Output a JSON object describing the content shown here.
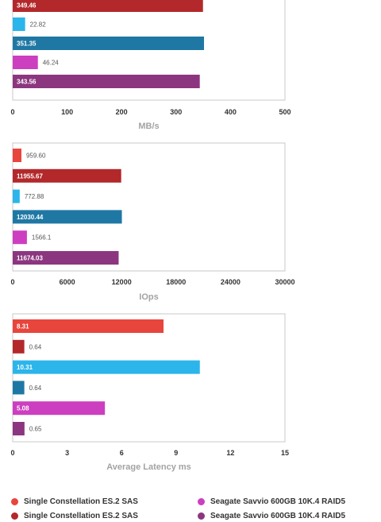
{
  "colors": {
    "red": "#e8453c",
    "dark_red": "#b3282a",
    "light_blue": "#2bb5ea",
    "dark_blue": "#1f78a4",
    "magenta": "#cc3fc0",
    "purple": "#8c3680",
    "frame": "#c8c8c8",
    "axis_title": "#a3a3a3"
  },
  "chart_data": [
    {
      "type": "bar",
      "orientation": "horizontal",
      "xlabel": "MB/s",
      "xlim": [
        0,
        500
      ],
      "ticks": [
        "0",
        "100",
        "200",
        "300",
        "400",
        "500"
      ],
      "bars": [
        {
          "label": "349.46",
          "value": 349.46,
          "color": "dark_red"
        },
        {
          "label": "22.82",
          "value": 22.82,
          "color": "light_blue"
        },
        {
          "label": "351.35",
          "value": 351.35,
          "color": "dark_blue"
        },
        {
          "label": "46.24",
          "value": 46.24,
          "color": "magenta"
        },
        {
          "label": "343.56",
          "value": 343.56,
          "color": "purple"
        }
      ]
    },
    {
      "type": "bar",
      "orientation": "horizontal",
      "xlabel": "IOps",
      "xlim": [
        0,
        30000
      ],
      "ticks": [
        "0",
        "6000",
        "12000",
        "18000",
        "24000",
        "30000"
      ],
      "bars": [
        {
          "label": "959.60",
          "value": 959.6,
          "color": "red"
        },
        {
          "label": "11955.67",
          "value": 11955.67,
          "color": "dark_red"
        },
        {
          "label": "772.88",
          "value": 772.88,
          "color": "light_blue"
        },
        {
          "label": "12030.44",
          "value": 12030.44,
          "color": "dark_blue"
        },
        {
          "label": "1566.1",
          "value": 1566.1,
          "color": "magenta"
        },
        {
          "label": "11674.03",
          "value": 11674.03,
          "color": "purple"
        }
      ]
    },
    {
      "type": "bar",
      "orientation": "horizontal",
      "xlabel": "Average Latency ms",
      "xlim": [
        0,
        15
      ],
      "ticks": [
        "0",
        "3",
        "6",
        "9",
        "12",
        "15"
      ],
      "bars": [
        {
          "label": "8.31",
          "value": 8.31,
          "color": "red"
        },
        {
          "label": "0.64",
          "value": 0.64,
          "color": "dark_red"
        },
        {
          "label": "10.31",
          "value": 10.31,
          "color": "light_blue"
        },
        {
          "label": "0.64",
          "value": 0.64,
          "color": "dark_blue"
        },
        {
          "label": "5.08",
          "value": 5.08,
          "color": "magenta"
        },
        {
          "label": "0.65",
          "value": 0.65,
          "color": "purple"
        }
      ]
    }
  ],
  "legend": [
    {
      "label": "Single Constellation ES.2 SAS",
      "color": "red"
    },
    {
      "label": "Seagate Savvio 600GB 10K.4 RAID5",
      "color": "magenta"
    },
    {
      "label": "Single Constellation ES.2 SAS",
      "color": "dark_red"
    },
    {
      "label": "Seagate Savvio 600GB 10K.4 RAID5",
      "color": "purple"
    }
  ]
}
